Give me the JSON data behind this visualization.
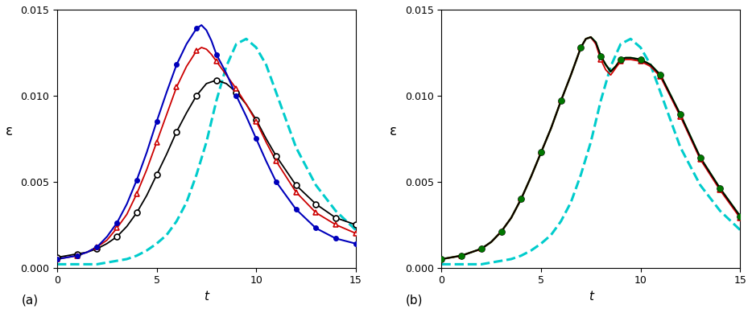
{
  "title_a": "(a)",
  "title_b": "(b)",
  "xlabel": "t",
  "ylabel": "ε",
  "xlim": [
    0,
    15
  ],
  "ylim": [
    0,
    0.015
  ],
  "yticks": [
    0,
    0.005,
    0.01,
    0.015
  ],
  "xticks": [
    0,
    5,
    10,
    15
  ],
  "cyan_t": [
    0,
    0.5,
    1,
    1.5,
    2,
    2.5,
    3,
    3.5,
    4,
    4.5,
    5,
    5.5,
    6,
    6.5,
    7,
    7.5,
    8,
    8.5,
    9,
    9.5,
    10,
    10.5,
    11,
    11.5,
    12,
    13,
    14,
    15
  ],
  "cyan_eps": [
    0.0002,
    0.0002,
    0.0002,
    0.0002,
    0.0002,
    0.0003,
    0.0004,
    0.0005,
    0.0007,
    0.001,
    0.0014,
    0.0019,
    0.0027,
    0.0038,
    0.0054,
    0.0073,
    0.0097,
    0.0117,
    0.013,
    0.0133,
    0.0128,
    0.0118,
    0.0102,
    0.0086,
    0.007,
    0.0048,
    0.0033,
    0.0022
  ],
  "panel_a": {
    "black_t": [
      0,
      0.5,
      1,
      1.5,
      2,
      2.5,
      3,
      3.5,
      4,
      4.5,
      5,
      5.5,
      6,
      6.5,
      7,
      7.5,
      8,
      8.5,
      9,
      9.5,
      10,
      10.5,
      11,
      12,
      13,
      14,
      15
    ],
    "black_eps": [
      0.0006,
      0.0007,
      0.0008,
      0.0009,
      0.0011,
      0.0014,
      0.0018,
      0.0024,
      0.0032,
      0.0042,
      0.0054,
      0.0066,
      0.0079,
      0.009,
      0.01,
      0.0107,
      0.0109,
      0.0107,
      0.0102,
      0.0095,
      0.0086,
      0.0075,
      0.0065,
      0.0048,
      0.0037,
      0.0029,
      0.0025
    ],
    "red_t": [
      0,
      0.5,
      1,
      1.5,
      2,
      2.5,
      3,
      3.5,
      4,
      4.5,
      5,
      5.5,
      6,
      6.5,
      7,
      7.25,
      7.5,
      7.75,
      8,
      8.25,
      8.5,
      9,
      9.5,
      10,
      10.5,
      11,
      12,
      13,
      14,
      15
    ],
    "red_eps": [
      0.0005,
      0.0006,
      0.0007,
      0.0009,
      0.0012,
      0.0016,
      0.0023,
      0.0031,
      0.0043,
      0.0057,
      0.0073,
      0.0089,
      0.0105,
      0.0117,
      0.0126,
      0.0128,
      0.0127,
      0.0124,
      0.012,
      0.0116,
      0.0112,
      0.0104,
      0.0095,
      0.0085,
      0.0073,
      0.0062,
      0.0044,
      0.0032,
      0.0025,
      0.002
    ],
    "blue_t": [
      0,
      0.5,
      1,
      1.5,
      2,
      2.5,
      3,
      3.5,
      4,
      4.5,
      5,
      5.5,
      6,
      6.5,
      7,
      7.25,
      7.5,
      7.75,
      8,
      8.5,
      9,
      9.5,
      10,
      10.5,
      11,
      12,
      13,
      14,
      15
    ],
    "blue_eps": [
      0.0005,
      0.0006,
      0.0007,
      0.0009,
      0.0012,
      0.0018,
      0.0026,
      0.0037,
      0.0051,
      0.0067,
      0.0085,
      0.0102,
      0.0118,
      0.013,
      0.0139,
      0.0141,
      0.0138,
      0.0132,
      0.0124,
      0.0113,
      0.01,
      0.0088,
      0.0075,
      0.0062,
      0.005,
      0.0034,
      0.0023,
      0.0017,
      0.0014
    ],
    "black_markers": [
      0,
      1,
      2,
      3,
      4,
      5,
      6,
      7,
      8,
      9,
      10,
      11,
      12,
      13,
      14,
      15
    ],
    "red_markers": [
      0,
      1,
      2,
      3,
      4,
      5,
      6,
      7,
      8,
      9,
      10,
      11,
      12,
      13,
      14,
      15
    ],
    "blue_markers": [
      0,
      1,
      2,
      3,
      4,
      5,
      6,
      7,
      8,
      9,
      10,
      11,
      12,
      13,
      14,
      15
    ]
  },
  "panel_b": {
    "black_t": [
      0,
      0.5,
      1,
      1.5,
      2,
      2.5,
      3,
      3.5,
      4,
      4.5,
      5,
      5.5,
      6,
      6.5,
      7,
      7.25,
      7.5,
      7.75,
      8,
      8.25,
      8.5,
      8.75,
      9,
      9.25,
      9.5,
      10,
      10.5,
      11,
      12,
      13,
      14,
      15
    ],
    "black_eps": [
      0.0005,
      0.0006,
      0.0007,
      0.0009,
      0.0011,
      0.0015,
      0.0021,
      0.0029,
      0.004,
      0.0053,
      0.0067,
      0.0081,
      0.0097,
      0.0112,
      0.0128,
      0.0133,
      0.0134,
      0.0131,
      0.0123,
      0.0118,
      0.0114,
      0.0117,
      0.0121,
      0.0122,
      0.0122,
      0.0121,
      0.0118,
      0.0112,
      0.0089,
      0.0064,
      0.0046,
      0.003
    ],
    "red_t": [
      0,
      0.5,
      1,
      1.5,
      2,
      2.5,
      3,
      3.5,
      4,
      4.5,
      5,
      5.5,
      6,
      6.5,
      7,
      7.25,
      7.5,
      7.75,
      8,
      8.25,
      8.5,
      8.75,
      9,
      9.25,
      9.5,
      10,
      10.5,
      11,
      12,
      13,
      14,
      15
    ],
    "red_eps": [
      0.0005,
      0.0006,
      0.0007,
      0.0009,
      0.0011,
      0.0015,
      0.0021,
      0.0029,
      0.004,
      0.0053,
      0.0067,
      0.0081,
      0.0097,
      0.0112,
      0.0128,
      0.0133,
      0.0134,
      0.013,
      0.0121,
      0.0115,
      0.0112,
      0.0116,
      0.012,
      0.0121,
      0.0121,
      0.012,
      0.0117,
      0.0111,
      0.0088,
      0.0063,
      0.0045,
      0.0029
    ],
    "green_t": [
      0,
      0.5,
      1,
      1.5,
      2,
      2.5,
      3,
      3.5,
      4,
      4.5,
      5,
      5.5,
      6,
      6.5,
      7,
      7.25,
      7.5,
      7.75,
      8,
      8.25,
      8.5,
      8.75,
      9,
      9.25,
      9.5,
      10,
      10.5,
      11,
      12,
      13,
      14,
      15
    ],
    "green_eps": [
      0.0005,
      0.0006,
      0.0007,
      0.0009,
      0.0011,
      0.0015,
      0.0021,
      0.0029,
      0.004,
      0.0053,
      0.0067,
      0.0081,
      0.0097,
      0.0112,
      0.0128,
      0.0133,
      0.0134,
      0.0131,
      0.0123,
      0.0118,
      0.0114,
      0.0117,
      0.0121,
      0.0122,
      0.0122,
      0.0121,
      0.0118,
      0.0112,
      0.0089,
      0.0064,
      0.0046,
      0.003
    ],
    "black_markers": [
      0,
      1,
      2,
      3,
      4,
      5,
      6,
      7,
      8,
      9,
      10,
      11,
      12,
      13,
      14,
      15
    ],
    "red_markers": [
      0,
      1,
      2,
      3,
      4,
      5,
      6,
      7,
      8,
      9,
      10,
      11,
      12,
      13,
      14,
      15
    ],
    "green_markers": [
      0,
      1,
      2,
      3,
      4,
      5,
      6,
      7,
      8,
      9,
      10,
      11,
      12,
      13,
      14,
      15
    ]
  },
  "colors": {
    "black": "#000000",
    "red": "#cc0000",
    "blue": "#0000bb",
    "green": "#007700",
    "cyan": "#00cccc"
  }
}
